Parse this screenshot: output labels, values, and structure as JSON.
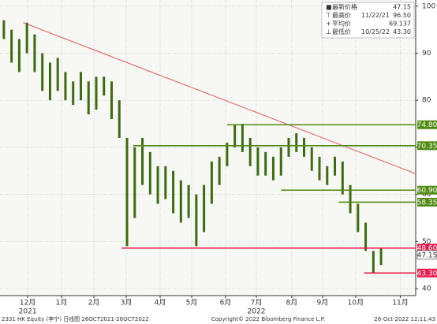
{
  "chart_data": {
    "type": "range-bar",
    "bar_color": "#3d6b12",
    "xlim": [
      0,
      54
    ],
    "xticks": [
      {
        "value": 3.6,
        "label": "12月"
      },
      {
        "value": 8.0,
        "label": "1月"
      },
      {
        "value": 12.2,
        "label": "2月"
      },
      {
        "value": 16.4,
        "label": "3月"
      },
      {
        "value": 20.8,
        "label": "4月"
      },
      {
        "value": 24.9,
        "label": "5月"
      },
      {
        "value": 29.3,
        "label": "6月"
      },
      {
        "value": 33.3,
        "label": "7月"
      },
      {
        "value": 37.9,
        "label": "8月"
      },
      {
        "value": 41.9,
        "label": "9月"
      },
      {
        "value": 46.2,
        "label": "10月"
      },
      {
        "value": 52.0,
        "label": "11月"
      }
    ],
    "year_labels": [
      {
        "value": 3.6,
        "label": "2021"
      },
      {
        "value": 33.3,
        "label": "2022"
      }
    ],
    "ylim": [
      38.5,
      101.3
    ],
    "yticks": [
      40,
      50,
      60,
      70,
      80,
      90,
      100
    ],
    "grid": true,
    "high": [
      97,
      95,
      93,
      96.5,
      94,
      90,
      88,
      89,
      86,
      84,
      86,
      84,
      85,
      85,
      84,
      80,
      72,
      70,
      72,
      69,
      66,
      66,
      65,
      63,
      62,
      60,
      62,
      67,
      68,
      71,
      74.8,
      75,
      72,
      70,
      69,
      68,
      70,
      72,
      73,
      72,
      70,
      68,
      66,
      68,
      67,
      62,
      58,
      54,
      48,
      48.5
    ],
    "low": [
      93,
      88,
      86,
      90,
      86,
      82,
      80,
      82,
      80,
      79,
      80,
      77,
      78,
      81,
      76,
      72,
      49,
      55,
      62,
      60,
      58,
      59,
      56,
      54,
      55,
      49,
      52,
      58,
      62,
      66,
      70,
      69,
      66,
      64,
      64,
      63,
      64,
      68,
      69,
      68,
      65,
      63,
      62,
      64,
      60,
      56,
      52,
      48,
      43.3,
      45
    ],
    "trendline": {
      "color": "#e8706f",
      "x": [
        3,
        54
      ],
      "y": [
        96.5,
        64.4
      ]
    },
    "levels": [
      {
        "value": 74.8,
        "label": "74.80",
        "start": 29.5,
        "color": "#4f8a10"
      },
      {
        "value": 70.35,
        "label": "70.35",
        "start": 17.3,
        "color": "#4f8a10"
      },
      {
        "value": 60.9,
        "label": "60.90",
        "start": 36.5,
        "color": "#4f8a10"
      },
      {
        "value": 58.35,
        "label": "58.35",
        "start": 44.0,
        "color": "#4f8a10"
      },
      {
        "value": 48.6,
        "label": "48.60",
        "start": 15.8,
        "color": "#e8194b"
      },
      {
        "value": 43.3,
        "label": "43.30",
        "start": 47.3,
        "color": "#e8194b"
      }
    ],
    "last_price": {
      "value": 47.15,
      "label": "47.15"
    },
    "legend": [
      {
        "marker": "■",
        "label": "最新价格",
        "date": "",
        "value": {
          "value": 47.15,
          "label": "47.15"
        }
      },
      {
        "marker": "⊤",
        "label": "最高价",
        "date": "11/22/21",
        "value": {
          "value": 96.5,
          "label": "96.50"
        }
      },
      {
        "marker": "+",
        "label": "平均价",
        "date": "",
        "value": 69.137
      },
      {
        "marker": "⊥",
        "label": "最低价",
        "date": "10/25/22",
        "value": {
          "value": 43.3,
          "label": "43.30"
        }
      }
    ],
    "footer": {
      "left": "2331 HK Equity (李宁)  日线图 26OCT2021-26OCT2022",
      "center": "Copyright© 2022 Bloomberg Finance L.P.",
      "right": "26-Oct-2022 12:11:43"
    }
  }
}
